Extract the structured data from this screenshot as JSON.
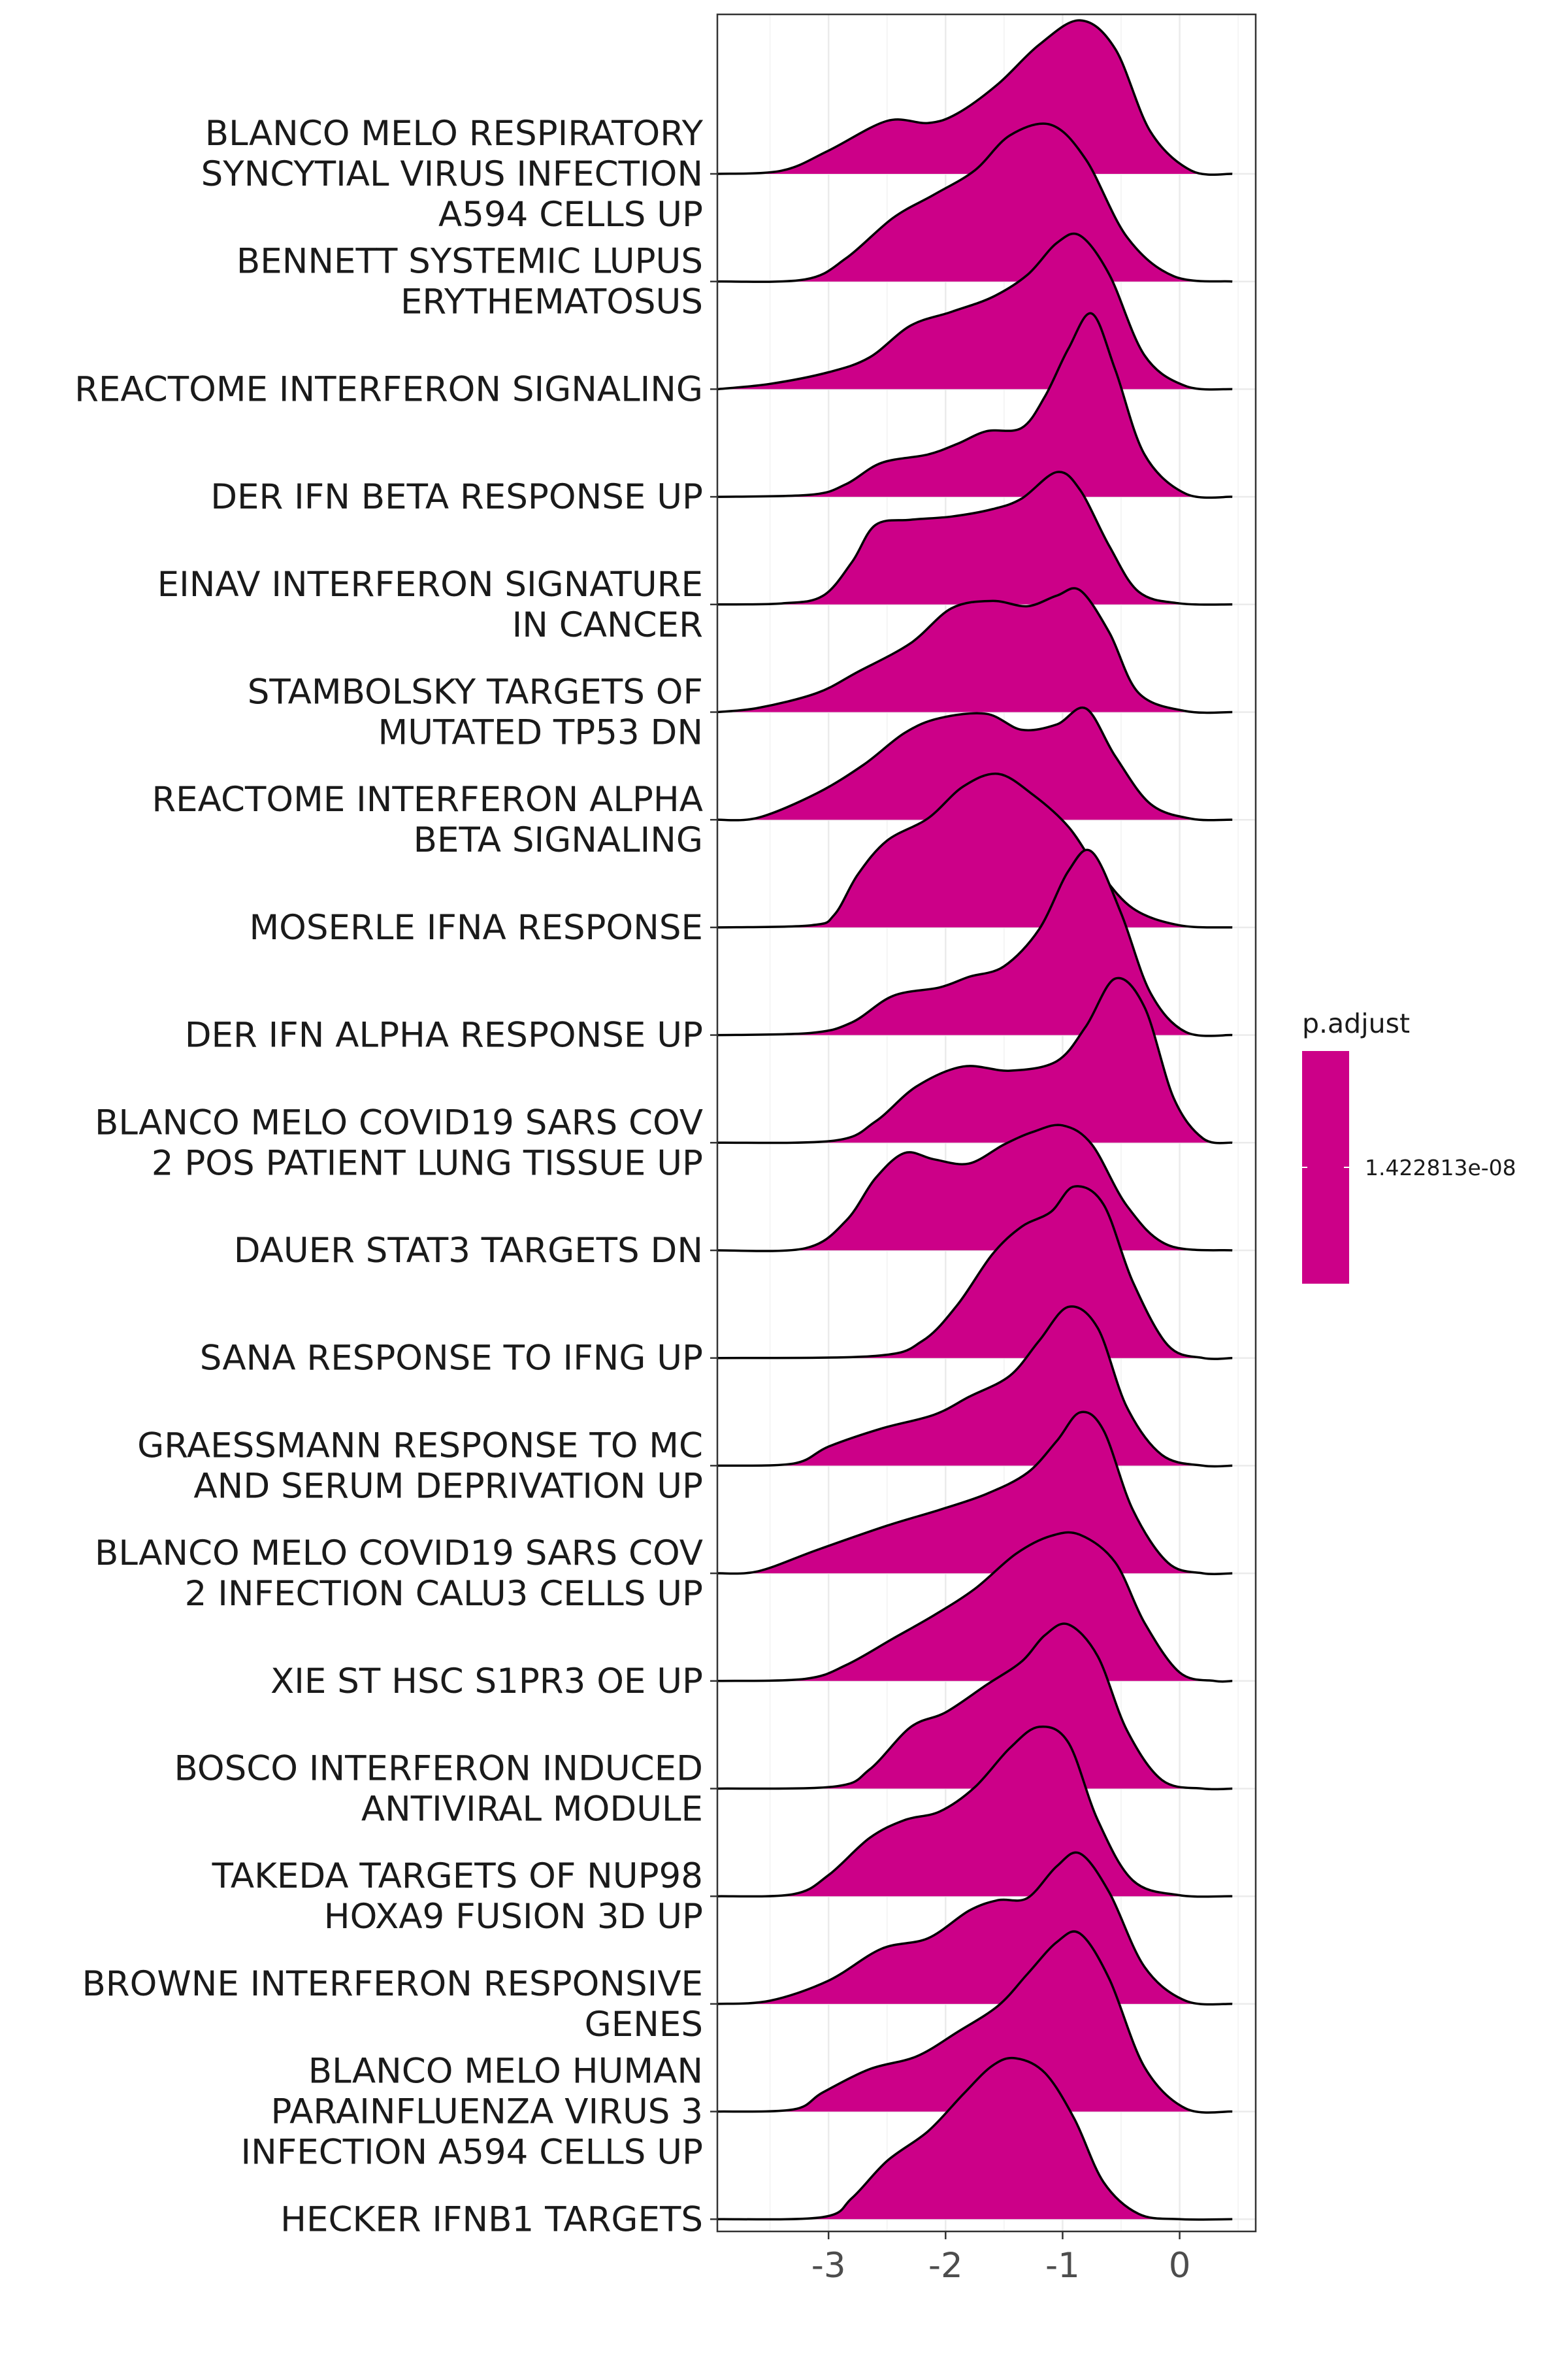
{
  "chart_data": {
    "type": "ridgeline",
    "title": "",
    "xlabel": "",
    "ylabel": "",
    "xlim": [
      -3.95,
      0.65
    ],
    "x_ticks": [
      -3,
      -2,
      -1,
      0
    ],
    "x_tick_labels": [
      "-3",
      "-2",
      "-1",
      "0"
    ],
    "fill_color": "#CC0088",
    "grid": true,
    "legend": {
      "title": "p.adjust",
      "position": "right",
      "labels": [
        "1.422813e-08"
      ]
    },
    "categories": [
      [
        "BLANCO MELO RESPIRATORY",
        "SYNCYTIAL VIRUS INFECTION",
        "A594 CELLS UP"
      ],
      [
        "BENNETT SYSTEMIC LUPUS",
        "ERYTHEMATOSUS"
      ],
      [
        "REACTOME INTERFERON SIGNALING"
      ],
      [
        "DER IFN BETA RESPONSE UP"
      ],
      [
        "EINAV INTERFERON SIGNATURE",
        "IN CANCER"
      ],
      [
        "STAMBOLSKY TARGETS OF",
        "MUTATED TP53 DN"
      ],
      [
        "REACTOME INTERFERON ALPHA",
        "BETA SIGNALING"
      ],
      [
        "MOSERLE IFNA RESPONSE"
      ],
      [
        "DER IFN ALPHA RESPONSE UP"
      ],
      [
        "BLANCO MELO COVID19 SARS COV",
        "2 POS PATIENT LUNG TISSUE UP"
      ],
      [
        "DAUER STAT3 TARGETS DN"
      ],
      [
        "SANA RESPONSE TO IFNG UP"
      ],
      [
        "GRAESSMANN RESPONSE TO MC",
        "AND SERUM DEPRIVATION UP"
      ],
      [
        "BLANCO MELO COVID19 SARS COV",
        "2 INFECTION CALU3 CELLS UP"
      ],
      [
        "XIE ST HSC S1PR3 OE UP"
      ],
      [
        "BOSCO INTERFERON INDUCED",
        "ANTIVIRAL MODULE"
      ],
      [
        "TAKEDA TARGETS OF NUP98",
        "HOXA9 FUSION 3D UP"
      ],
      [
        "BROWNE INTERFERON RESPONSIVE",
        "GENES"
      ],
      [
        "BLANCO MELO HUMAN",
        "PARAINFLUENZA VIRUS 3",
        "INFECTION A594 CELLS UP"
      ],
      [
        "HECKER IFNB1 TARGETS"
      ]
    ],
    "ridges": [
      [
        [
          -3.95,
          0
        ],
        [
          -3.4,
          0.03
        ],
        [
          -3.0,
          0.22
        ],
        [
          -2.5,
          0.5
        ],
        [
          -2.15,
          0.48
        ],
        [
          -1.9,
          0.57
        ],
        [
          -1.55,
          0.85
        ],
        [
          -1.2,
          1.22
        ],
        [
          -0.85,
          1.45
        ],
        [
          -0.55,
          1.18
        ],
        [
          -0.25,
          0.4
        ],
        [
          0.1,
          0.03
        ],
        [
          0.45,
          0
        ]
      ],
      [
        [
          -3.95,
          0
        ],
        [
          -3.2,
          0.02
        ],
        [
          -2.85,
          0.22
        ],
        [
          -2.45,
          0.6
        ],
        [
          -2.1,
          0.82
        ],
        [
          -1.75,
          1.05
        ],
        [
          -1.45,
          1.38
        ],
        [
          -1.1,
          1.48
        ],
        [
          -0.8,
          1.15
        ],
        [
          -0.45,
          0.42
        ],
        [
          -0.05,
          0.05
        ],
        [
          0.45,
          0
        ]
      ],
      [
        [
          -3.95,
          0
        ],
        [
          -3.5,
          0.05
        ],
        [
          -3.0,
          0.16
        ],
        [
          -2.65,
          0.3
        ],
        [
          -2.3,
          0.6
        ],
        [
          -1.95,
          0.73
        ],
        [
          -1.6,
          0.87
        ],
        [
          -1.3,
          1.08
        ],
        [
          -1.05,
          1.38
        ],
        [
          -0.85,
          1.45
        ],
        [
          -0.6,
          1.08
        ],
        [
          -0.3,
          0.32
        ],
        [
          0.05,
          0.03
        ],
        [
          0.45,
          0
        ]
      ],
      [
        [
          -3.95,
          0
        ],
        [
          -3.15,
          0.02
        ],
        [
          -2.85,
          0.12
        ],
        [
          -2.55,
          0.32
        ],
        [
          -2.15,
          0.4
        ],
        [
          -1.9,
          0.5
        ],
        [
          -1.65,
          0.62
        ],
        [
          -1.35,
          0.65
        ],
        [
          -1.15,
          0.95
        ],
        [
          -0.95,
          1.4
        ],
        [
          -0.75,
          1.73
        ],
        [
          -0.55,
          1.2
        ],
        [
          -0.3,
          0.4
        ],
        [
          0.05,
          0.03
        ],
        [
          0.45,
          0
        ]
      ],
      [
        [
          -3.95,
          0
        ],
        [
          -3.4,
          0.01
        ],
        [
          -3.05,
          0.08
        ],
        [
          -2.8,
          0.4
        ],
        [
          -2.6,
          0.75
        ],
        [
          -2.3,
          0.8
        ],
        [
          -1.95,
          0.83
        ],
        [
          -1.6,
          0.9
        ],
        [
          -1.35,
          1.0
        ],
        [
          -1.05,
          1.25
        ],
        [
          -0.85,
          1.08
        ],
        [
          -0.6,
          0.55
        ],
        [
          -0.35,
          0.12
        ],
        [
          0.0,
          0.01
        ],
        [
          0.45,
          0
        ]
      ],
      [
        [
          -3.95,
          0
        ],
        [
          -3.6,
          0.04
        ],
        [
          -3.1,
          0.18
        ],
        [
          -2.75,
          0.38
        ],
        [
          -2.3,
          0.65
        ],
        [
          -1.95,
          0.98
        ],
        [
          -1.6,
          1.05
        ],
        [
          -1.3,
          1.0
        ],
        [
          -1.05,
          1.1
        ],
        [
          -0.85,
          1.15
        ],
        [
          -0.6,
          0.75
        ],
        [
          -0.35,
          0.18
        ],
        [
          0.05,
          0.01
        ],
        [
          0.45,
          0
        ]
      ],
      [
        [
          -3.95,
          0
        ],
        [
          -3.6,
          0.02
        ],
        [
          -3.1,
          0.25
        ],
        [
          -2.7,
          0.52
        ],
        [
          -2.35,
          0.82
        ],
        [
          -2.05,
          0.96
        ],
        [
          -1.65,
          1.0
        ],
        [
          -1.35,
          0.85
        ],
        [
          -1.05,
          0.9
        ],
        [
          -0.8,
          1.05
        ],
        [
          -0.55,
          0.6
        ],
        [
          -0.25,
          0.15
        ],
        [
          0.1,
          0.01
        ],
        [
          0.45,
          0
        ]
      ],
      [
        [
          -3.95,
          0
        ],
        [
          -3.15,
          0.02
        ],
        [
          -2.95,
          0.12
        ],
        [
          -2.75,
          0.5
        ],
        [
          -2.5,
          0.82
        ],
        [
          -2.15,
          1.03
        ],
        [
          -1.85,
          1.33
        ],
        [
          -1.55,
          1.45
        ],
        [
          -1.25,
          1.25
        ],
        [
          -0.95,
          0.95
        ],
        [
          -0.7,
          0.55
        ],
        [
          -0.4,
          0.18
        ],
        [
          0.0,
          0.02
        ],
        [
          0.45,
          0
        ]
      ],
      [
        [
          -3.95,
          0
        ],
        [
          -3.15,
          0.02
        ],
        [
          -2.8,
          0.12
        ],
        [
          -2.45,
          0.37
        ],
        [
          -2.05,
          0.45
        ],
        [
          -1.8,
          0.55
        ],
        [
          -1.5,
          0.65
        ],
        [
          -1.2,
          1.0
        ],
        [
          -0.95,
          1.55
        ],
        [
          -0.75,
          1.73
        ],
        [
          -0.5,
          1.15
        ],
        [
          -0.25,
          0.4
        ],
        [
          0.05,
          0.03
        ],
        [
          0.45,
          0
        ]
      ],
      [
        [
          -3.95,
          0
        ],
        [
          -2.95,
          0.02
        ],
        [
          -2.6,
          0.2
        ],
        [
          -2.25,
          0.53
        ],
        [
          -1.85,
          0.72
        ],
        [
          -1.45,
          0.68
        ],
        [
          -1.05,
          0.77
        ],
        [
          -0.8,
          1.1
        ],
        [
          -0.55,
          1.55
        ],
        [
          -0.3,
          1.28
        ],
        [
          -0.05,
          0.42
        ],
        [
          0.2,
          0.04
        ],
        [
          0.45,
          0
        ]
      ],
      [
        [
          -3.95,
          0
        ],
        [
          -3.2,
          0.02
        ],
        [
          -2.85,
          0.28
        ],
        [
          -2.6,
          0.68
        ],
        [
          -2.35,
          0.92
        ],
        [
          -2.1,
          0.86
        ],
        [
          -1.8,
          0.82
        ],
        [
          -1.5,
          1.0
        ],
        [
          -1.25,
          1.12
        ],
        [
          -1.0,
          1.18
        ],
        [
          -0.75,
          1.0
        ],
        [
          -0.45,
          0.42
        ],
        [
          -0.1,
          0.05
        ],
        [
          0.45,
          0
        ]
      ],
      [
        [
          -3.95,
          0
        ],
        [
          -2.6,
          0.02
        ],
        [
          -2.2,
          0.16
        ],
        [
          -1.9,
          0.5
        ],
        [
          -1.6,
          0.98
        ],
        [
          -1.35,
          1.24
        ],
        [
          -1.1,
          1.38
        ],
        [
          -0.9,
          1.62
        ],
        [
          -0.65,
          1.45
        ],
        [
          -0.4,
          0.72
        ],
        [
          -0.1,
          0.12
        ],
        [
          0.2,
          0
        ],
        [
          0.45,
          0
        ]
      ],
      [
        [
          -3.95,
          0
        ],
        [
          -3.3,
          0.02
        ],
        [
          -3.0,
          0.18
        ],
        [
          -2.55,
          0.35
        ],
        [
          -2.1,
          0.48
        ],
        [
          -1.8,
          0.65
        ],
        [
          -1.45,
          0.85
        ],
        [
          -1.2,
          1.18
        ],
        [
          -0.95,
          1.5
        ],
        [
          -0.7,
          1.3
        ],
        [
          -0.45,
          0.55
        ],
        [
          -0.15,
          0.1
        ],
        [
          0.2,
          0
        ],
        [
          0.45,
          0
        ]
      ],
      [
        [
          -3.95,
          0
        ],
        [
          -3.6,
          0.02
        ],
        [
          -3.1,
          0.22
        ],
        [
          -2.5,
          0.45
        ],
        [
          -2.05,
          0.6
        ],
        [
          -1.65,
          0.75
        ],
        [
          -1.3,
          0.95
        ],
        [
          -1.05,
          1.25
        ],
        [
          -0.85,
          1.52
        ],
        [
          -0.65,
          1.35
        ],
        [
          -0.4,
          0.6
        ],
        [
          -0.1,
          0.1
        ],
        [
          0.2,
          0
        ],
        [
          0.45,
          0
        ]
      ],
      [
        [
          -3.95,
          0
        ],
        [
          -3.2,
          0.02
        ],
        [
          -2.85,
          0.15
        ],
        [
          -2.45,
          0.4
        ],
        [
          -2.1,
          0.62
        ],
        [
          -1.75,
          0.87
        ],
        [
          -1.4,
          1.2
        ],
        [
          -1.1,
          1.37
        ],
        [
          -0.85,
          1.38
        ],
        [
          -0.55,
          1.12
        ],
        [
          -0.3,
          0.55
        ],
        [
          0.0,
          0.08
        ],
        [
          0.3,
          0
        ],
        [
          0.45,
          0
        ]
      ],
      [
        [
          -3.95,
          0
        ],
        [
          -2.95,
          0.02
        ],
        [
          -2.65,
          0.18
        ],
        [
          -2.3,
          0.58
        ],
        [
          -2.0,
          0.72
        ],
        [
          -1.65,
          0.98
        ],
        [
          -1.35,
          1.2
        ],
        [
          -1.15,
          1.45
        ],
        [
          -0.95,
          1.55
        ],
        [
          -0.7,
          1.25
        ],
        [
          -0.45,
          0.55
        ],
        [
          -0.15,
          0.08
        ],
        [
          0.2,
          0
        ],
        [
          0.45,
          0
        ]
      ],
      [
        [
          -3.95,
          0
        ],
        [
          -3.3,
          0.02
        ],
        [
          -3.0,
          0.2
        ],
        [
          -2.65,
          0.55
        ],
        [
          -2.35,
          0.72
        ],
        [
          -2.05,
          0.8
        ],
        [
          -1.75,
          1.03
        ],
        [
          -1.45,
          1.4
        ],
        [
          -1.2,
          1.6
        ],
        [
          -0.95,
          1.45
        ],
        [
          -0.7,
          0.72
        ],
        [
          -0.4,
          0.15
        ],
        [
          0.0,
          0.01
        ],
        [
          0.45,
          0
        ]
      ],
      [
        [
          -3.95,
          0
        ],
        [
          -3.5,
          0.03
        ],
        [
          -3.0,
          0.22
        ],
        [
          -2.55,
          0.52
        ],
        [
          -2.15,
          0.62
        ],
        [
          -1.8,
          0.88
        ],
        [
          -1.55,
          0.98
        ],
        [
          -1.3,
          1.0
        ],
        [
          -1.05,
          1.3
        ],
        [
          -0.85,
          1.42
        ],
        [
          -0.6,
          1.05
        ],
        [
          -0.3,
          0.35
        ],
        [
          0.05,
          0.03
        ],
        [
          0.45,
          0
        ]
      ],
      [
        [
          -3.95,
          0
        ],
        [
          -3.3,
          0.02
        ],
        [
          -3.05,
          0.18
        ],
        [
          -2.65,
          0.4
        ],
        [
          -2.25,
          0.52
        ],
        [
          -1.9,
          0.75
        ],
        [
          -1.55,
          1.0
        ],
        [
          -1.3,
          1.3
        ],
        [
          -1.05,
          1.6
        ],
        [
          -0.85,
          1.68
        ],
        [
          -0.6,
          1.25
        ],
        [
          -0.3,
          0.42
        ],
        [
          0.05,
          0.03
        ],
        [
          0.45,
          0
        ]
      ],
      [
        [
          -3.95,
          0
        ],
        [
          -3.05,
          0.02
        ],
        [
          -2.8,
          0.2
        ],
        [
          -2.5,
          0.55
        ],
        [
          -2.15,
          0.83
        ],
        [
          -1.85,
          1.18
        ],
        [
          -1.6,
          1.45
        ],
        [
          -1.4,
          1.52
        ],
        [
          -1.15,
          1.38
        ],
        [
          -0.9,
          0.95
        ],
        [
          -0.65,
          0.35
        ],
        [
          -0.35,
          0.05
        ],
        [
          0.0,
          0
        ],
        [
          0.45,
          0
        ]
      ]
    ]
  }
}
